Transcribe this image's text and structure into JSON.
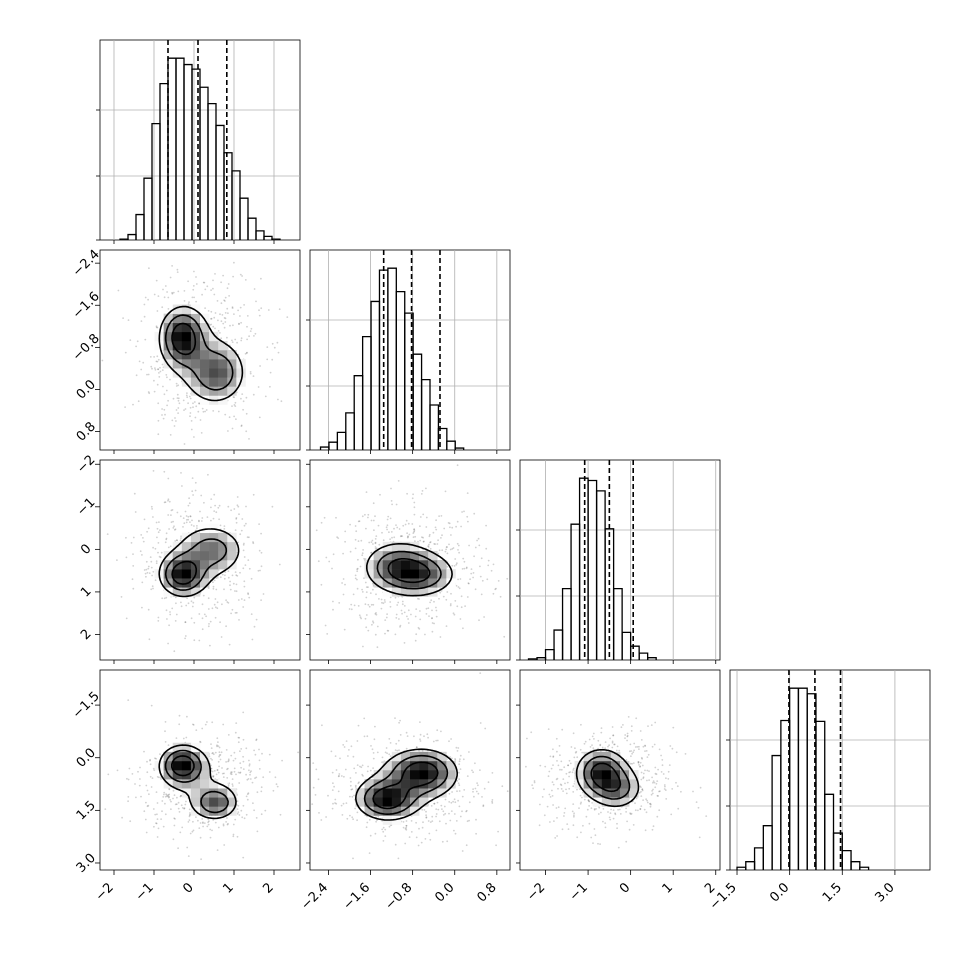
{
  "chart_data": {
    "type": "corner",
    "title": "",
    "parameters": [
      {
        "xticks": [
          "−2",
          "−1",
          "0",
          "1",
          "2"
        ],
        "yticks": [
          "0.8",
          "0.0",
          "−0.8",
          "−1.6",
          "−2.4"
        ]
      },
      {
        "xticks": [
          "−2.4",
          "−1.6",
          "−0.8",
          "0.0",
          "0.8"
        ],
        "yticks": [
          "2",
          "1",
          "0",
          "−1",
          "−2"
        ]
      },
      {
        "xticks": [
          "−2",
          "−1",
          "0",
          "1",
          "2"
        ],
        "yticks": [
          "3.0",
          "1.5",
          "0.0",
          "−1.5"
        ]
      },
      {
        "xticks": [
          "−1.5",
          "0.0",
          "1.5",
          "3.0"
        ]
      }
    ],
    "ranges": [
      [
        -2.35,
        2.65
      ],
      [
        -2.75,
        1.05
      ],
      [
        -2.6,
        2.1
      ],
      [
        -1.7,
        4.0
      ]
    ],
    "tick_values": [
      [
        -2,
        -1,
        0,
        1,
        2
      ],
      [
        -2.4,
        -1.6,
        -0.8,
        0.0,
        0.8
      ],
      [
        -2,
        -1,
        0,
        1,
        2
      ],
      [
        -1.5,
        0.0,
        1.5,
        3.0
      ]
    ],
    "quantiles": [
      [
        -0.65,
        0.1,
        0.82
      ],
      [
        -1.35,
        -0.82,
        -0.28
      ],
      [
        -1.08,
        -0.5,
        0.06
      ],
      [
        -0.02,
        0.72,
        1.45
      ]
    ],
    "marginal_histograms": [
      {
        "bin_start": -1.85,
        "bin_width": 0.2,
        "counts": [
          1,
          6,
          28,
          68,
          128,
          172,
          200,
          200,
          193,
          188,
          168,
          150,
          126,
          96,
          76,
          46,
          24,
          10,
          4,
          1
        ]
      },
      {
        "bin_start": -2.55,
        "bin_width": 0.16,
        "counts": [
          3,
          8,
          18,
          38,
          76,
          116,
          152,
          184,
          186,
          162,
          140,
          98,
          72,
          46,
          22,
          9,
          2
        ]
      },
      {
        "bin_start": -2.4,
        "bin_width": 0.2,
        "counts": [
          1,
          2,
          9,
          26,
          62,
          118,
          158,
          156,
          147,
          114,
          62,
          24,
          12,
          6,
          2
        ]
      },
      {
        "bin_start": -1.5,
        "bin_width": 0.25,
        "counts": [
          3,
          9,
          24,
          48,
          124,
          162,
          197,
          197,
          191,
          161,
          82,
          40,
          21,
          9,
          3
        ]
      }
    ],
    "density_panels": [
      {
        "row": 1,
        "col": 0,
        "peaks": [
          [
            -0.3,
            -0.6,
            0.35,
            0.35,
            1.0
          ],
          [
            0.6,
            -1.3,
            0.45,
            0.35,
            0.7
          ]
        ]
      },
      {
        "row": 2,
        "col": 0,
        "peaks": [
          [
            -0.3,
            -0.6,
            0.35,
            0.3,
            1.0
          ],
          [
            0.5,
            0.0,
            0.5,
            0.35,
            0.6
          ]
        ]
      },
      {
        "row": 2,
        "col": 1,
        "peaks": [
          [
            -1.1,
            -0.4,
            0.4,
            0.35,
            0.9
          ],
          [
            -0.6,
            -0.6,
            0.4,
            0.3,
            0.8
          ]
        ]
      },
      {
        "row": 3,
        "col": 0,
        "peaks": [
          [
            -0.3,
            1.3,
            0.35,
            0.35,
            1.0
          ],
          [
            0.55,
            0.2,
            0.35,
            0.3,
            0.7
          ]
        ]
      },
      {
        "row": 3,
        "col": 1,
        "peaks": [
          [
            -1.3,
            0.3,
            0.35,
            0.35,
            0.9
          ],
          [
            -0.6,
            1.1,
            0.4,
            0.4,
            0.9
          ]
        ]
      },
      {
        "row": 3,
        "col": 2,
        "peaks": [
          [
            -0.7,
            1.1,
            0.35,
            0.4,
            1.0
          ],
          [
            -0.3,
            0.6,
            0.35,
            0.35,
            0.6
          ]
        ]
      }
    ]
  }
}
